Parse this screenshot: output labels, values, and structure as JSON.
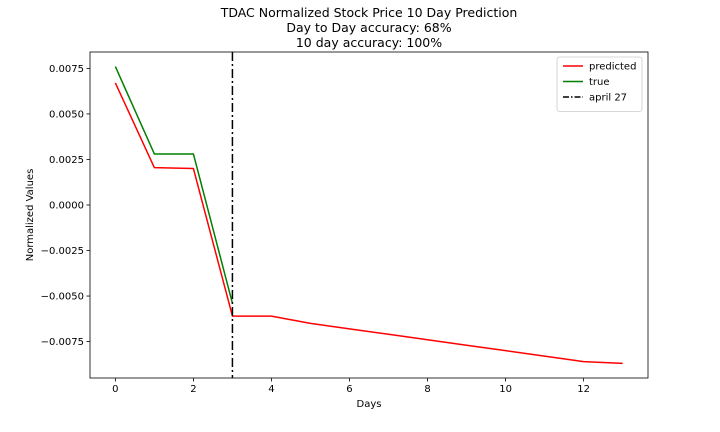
{
  "chart_data": {
    "type": "line",
    "title_lines": [
      "TDAC Normalized Stock Price 10 Day Prediction",
      "Day to Day accuracy: 68%",
      "10 day accuracy: 100%"
    ],
    "xlabel": "Days",
    "ylabel": "Normalized Values",
    "xlim": [
      -0.65,
      13.65
    ],
    "ylim": [
      -0.0095,
      0.0084
    ],
    "x_ticks": [
      0,
      2,
      4,
      6,
      8,
      10,
      12
    ],
    "x_tick_labels": [
      "0",
      "2",
      "4",
      "6",
      "8",
      "10",
      "12"
    ],
    "y_ticks": [
      0.0075,
      0.005,
      0.0025,
      0.0,
      -0.0025,
      -0.005,
      -0.0075
    ],
    "y_tick_labels": [
      "0.0075",
      "0.0050",
      "0.0025",
      "0.0000",
      "−0.0025",
      "−0.0050",
      "−0.0075"
    ],
    "grid": false,
    "legend_position": "top-right",
    "series": [
      {
        "name": "predicted",
        "color": "#ff0000",
        "x": [
          0,
          1,
          2,
          3,
          4,
          5,
          6,
          7,
          8,
          9,
          10,
          11,
          12,
          13
        ],
        "y": [
          0.0067,
          0.00205,
          0.002,
          -0.0061,
          -0.0061,
          -0.0065,
          -0.0068,
          -0.0071,
          -0.0074,
          -0.0077,
          -0.008,
          -0.0083,
          -0.0086,
          -0.0087
        ]
      },
      {
        "name": "true",
        "color": "#008000",
        "x": [
          0,
          1,
          2,
          3
        ],
        "y": [
          0.0076,
          0.0028,
          0.0028,
          -0.0054
        ]
      }
    ],
    "vline": {
      "name": "april 27",
      "x": 3,
      "color": "#000000",
      "style": "dash-dot"
    }
  }
}
